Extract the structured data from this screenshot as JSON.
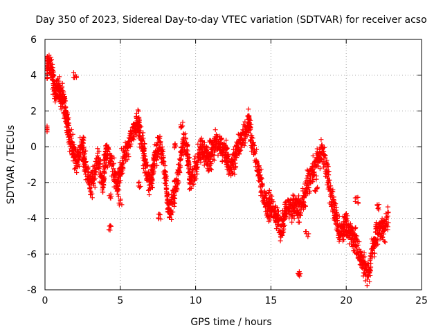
{
  "chart_data": {
    "type": "scatter",
    "title": "Day 350 of 2023, Sidereal Day-to-day VTEC variation (SDTVAR) for receiver acso",
    "xlabel": "GPS time / hours",
    "ylabel": "SDTVAR / TECUs",
    "xlim": [
      0,
      25
    ],
    "ylim": [
      -8,
      6
    ],
    "xticks": [
      0,
      5,
      10,
      15,
      20,
      25
    ],
    "yticks": [
      -8,
      -6,
      -4,
      -2,
      0,
      2,
      4,
      6
    ],
    "grid": true,
    "marker": "+",
    "series_color": "#ff0000",
    "series": [
      {
        "name": "SDTVAR",
        "trace": [
          [
            0.05,
            4.3
          ],
          [
            0.2,
            4.6
          ],
          [
            0.35,
            4.5
          ],
          [
            0.5,
            4.1
          ],
          [
            0.6,
            3.4
          ],
          [
            0.75,
            3.0
          ],
          [
            0.9,
            3.3
          ],
          [
            1.0,
            2.9
          ],
          [
            1.1,
            2.6
          ],
          [
            1.2,
            2.8
          ],
          [
            1.3,
            2.3
          ],
          [
            1.4,
            1.8
          ],
          [
            1.5,
            1.2
          ],
          [
            1.6,
            0.6
          ],
          [
            1.75,
            0.2
          ],
          [
            1.9,
            -0.2
          ],
          [
            2.1,
            -0.8
          ],
          [
            2.3,
            -0.3
          ],
          [
            2.5,
            0.1
          ],
          [
            2.6,
            -0.5
          ],
          [
            2.7,
            -1.2
          ],
          [
            2.9,
            -1.8
          ],
          [
            3.1,
            -2.2
          ],
          [
            3.3,
            -1.5
          ],
          [
            3.5,
            -0.8
          ],
          [
            3.7,
            -1.4
          ],
          [
            3.85,
            -2.2
          ],
          [
            3.95,
            -1.0
          ],
          [
            4.05,
            -0.2
          ],
          [
            4.2,
            -0.5
          ],
          [
            4.5,
            -1.2
          ],
          [
            4.7,
            -1.8
          ],
          [
            4.85,
            -2.3
          ],
          [
            5.0,
            -1.3
          ],
          [
            5.2,
            -0.6
          ],
          [
            5.4,
            -0.2
          ],
          [
            5.6,
            0.3
          ],
          [
            5.8,
            0.7
          ],
          [
            6.0,
            1.2
          ],
          [
            6.2,
            1.4
          ],
          [
            6.3,
            0.8
          ],
          [
            6.5,
            0.1
          ],
          [
            6.6,
            -0.6
          ],
          [
            6.7,
            -1.2
          ],
          [
            6.9,
            -2.0
          ],
          [
            7.1,
            -1.8
          ],
          [
            7.2,
            -1.0
          ],
          [
            7.4,
            -0.3
          ],
          [
            7.6,
            0.2
          ],
          [
            7.8,
            -0.5
          ],
          [
            8.0,
            -1.5
          ],
          [
            8.1,
            -2.8
          ],
          [
            8.2,
            -3.6
          ],
          [
            8.4,
            -3.4
          ],
          [
            8.6,
            -2.6
          ],
          [
            8.8,
            -1.8
          ],
          [
            9.0,
            -0.6
          ],
          [
            9.2,
            0.2
          ],
          [
            9.4,
            0.0
          ],
          [
            9.5,
            -0.8
          ],
          [
            9.6,
            -1.6
          ],
          [
            9.8,
            -1.9
          ],
          [
            10.0,
            -1.2
          ],
          [
            10.2,
            -0.5
          ],
          [
            10.4,
            -0.2
          ],
          [
            10.6,
            -0.4
          ],
          [
            10.8,
            -0.9
          ],
          [
            11.0,
            -0.6
          ],
          [
            11.2,
            -0.1
          ],
          [
            11.4,
            0.3
          ],
          [
            11.6,
            0.2
          ],
          [
            11.8,
            -0.1
          ],
          [
            12.0,
            -0.3
          ],
          [
            12.1,
            -0.8
          ],
          [
            12.3,
            -1.2
          ],
          [
            12.5,
            -1.0
          ],
          [
            12.7,
            -0.5
          ],
          [
            12.9,
            0.0
          ],
          [
            13.1,
            0.5
          ],
          [
            13.3,
            0.9
          ],
          [
            13.5,
            1.5
          ],
          [
            13.6,
            1.0
          ],
          [
            13.8,
            0.0
          ],
          [
            14.0,
            -0.7
          ],
          [
            14.2,
            -1.5
          ],
          [
            14.4,
            -2.3
          ],
          [
            14.6,
            -3.0
          ],
          [
            14.8,
            -3.5
          ],
          [
            14.9,
            -3.0
          ],
          [
            15.1,
            -3.4
          ],
          [
            15.3,
            -3.8
          ],
          [
            15.5,
            -4.2
          ],
          [
            15.7,
            -4.7
          ],
          [
            15.9,
            -4.0
          ],
          [
            16.0,
            -3.5
          ],
          [
            16.2,
            -3.3
          ],
          [
            16.4,
            -3.6
          ],
          [
            16.6,
            -3.2
          ],
          [
            16.8,
            -3.5
          ],
          [
            17.0,
            -3.4
          ],
          [
            17.2,
            -3.0
          ],
          [
            17.4,
            -2.2
          ],
          [
            17.6,
            -1.7
          ],
          [
            17.8,
            -1.3
          ],
          [
            18.0,
            -1.0
          ],
          [
            18.2,
            -0.6
          ],
          [
            18.4,
            -0.3
          ],
          [
            18.6,
            -0.8
          ],
          [
            18.8,
            -1.6
          ],
          [
            19.0,
            -2.8
          ],
          [
            19.2,
            -3.5
          ],
          [
            19.4,
            -4.2
          ],
          [
            19.6,
            -4.8
          ],
          [
            19.8,
            -4.6
          ],
          [
            20.0,
            -4.3
          ],
          [
            20.2,
            -4.6
          ],
          [
            20.4,
            -4.9
          ],
          [
            20.6,
            -5.3
          ],
          [
            20.8,
            -5.8
          ],
          [
            21.0,
            -6.3
          ],
          [
            21.2,
            -6.7
          ],
          [
            21.4,
            -7.1
          ],
          [
            21.6,
            -6.5
          ],
          [
            21.8,
            -5.5
          ],
          [
            22.0,
            -4.9
          ],
          [
            22.2,
            -4.8
          ],
          [
            22.4,
            -4.4
          ],
          [
            22.6,
            -4.6
          ],
          [
            22.8,
            -3.9
          ]
        ],
        "clusters": [
          [
            0.1,
            1.0
          ],
          [
            2.0,
            4.0
          ],
          [
            4.3,
            -4.5
          ],
          [
            4.3,
            -2.8
          ],
          [
            5.0,
            -3.1
          ],
          [
            7.6,
            -3.9
          ],
          [
            9.1,
            1.2
          ],
          [
            16.9,
            -7.1
          ],
          [
            17.4,
            -4.9
          ],
          [
            19.3,
            -4.0
          ],
          [
            19.5,
            -5.0
          ],
          [
            20.7,
            -3.0
          ],
          [
            22.1,
            -3.4
          ],
          [
            10.5,
            0.2
          ],
          [
            12.8,
            0.1
          ],
          [
            6.3,
            -2.1
          ],
          [
            8.7,
            0.1
          ],
          [
            11.0,
            0.4
          ],
          [
            14.9,
            -4.0
          ],
          [
            18.0,
            -2.4
          ]
        ]
      }
    ]
  }
}
